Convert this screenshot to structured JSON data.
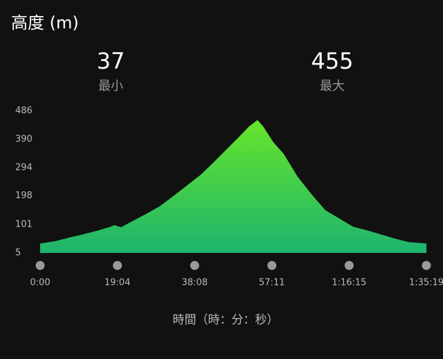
{
  "chart_data": {
    "type": "area",
    "title": "高度 (m)",
    "stats": [
      {
        "value": 37,
        "label": "最小"
      },
      {
        "value": 455,
        "label": "最大"
      }
    ],
    "x_label": "時間（時：分：秒）",
    "x": [
      0,
      225,
      430,
      635,
      840,
      1045,
      1097,
      1199,
      1353,
      1558,
      1763,
      1968,
      2173,
      2378,
      2583,
      2788,
      2941,
      3095,
      3218,
      3300,
      3454,
      3608,
      3813,
      4018,
      4223,
      4428,
      4633,
      4838,
      5043,
      5248,
      5453,
      5719
    ],
    "values": [
      37,
      45,
      57,
      68,
      80,
      94,
      99,
      92,
      111,
      136,
      162,
      197,
      233,
      270,
      315,
      362,
      397,
      434,
      455,
      434,
      380,
      340,
      263,
      204,
      150,
      122,
      94,
      82,
      68,
      54,
      42,
      37
    ],
    "gradient": [
      "#66e52a",
      "#1db46e"
    ],
    "xlim": [
      0,
      5719
    ],
    "xticks": [
      {
        "value": 0,
        "label": "0:00"
      },
      {
        "value": 1144,
        "label": "19:04"
      },
      {
        "value": 2288,
        "label": "38:08"
      },
      {
        "value": 3431,
        "label": "57:11"
      },
      {
        "value": 4575,
        "label": "1:16:15"
      },
      {
        "value": 5719,
        "label": "1:35:19"
      }
    ],
    "ylim": [
      5,
      486
    ],
    "yticks": [
      5,
      101,
      198,
      294,
      390,
      486
    ]
  }
}
